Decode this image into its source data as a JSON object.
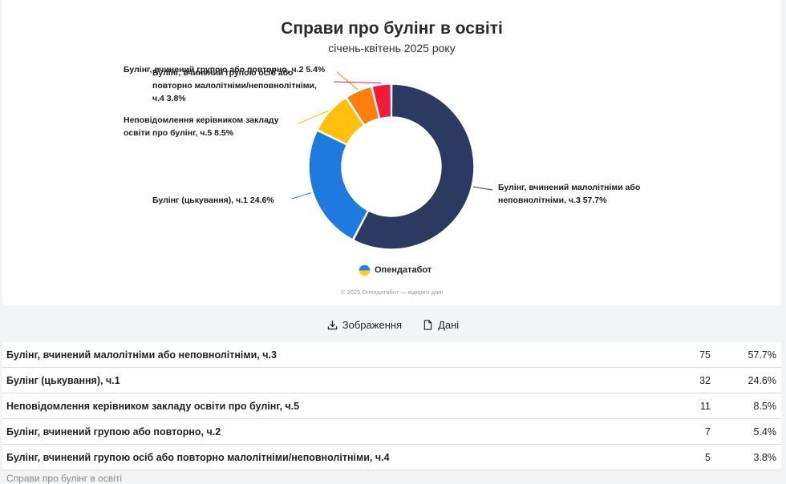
{
  "chart_data": {
    "type": "pie",
    "donut": true,
    "title": "Справи про булінг в освіті",
    "subtitle": "січень-квітень 2025 року",
    "slices": [
      {
        "label": "Булінг, вчинений малолітніми або неповнолітніми, ч.3",
        "label_lines": [
          "Булінг, вчинений малолітніми або",
          "неповнолітніми, ч.3 57.7%"
        ],
        "value": 75,
        "percent": 57.7,
        "color": "#2c3a62"
      },
      {
        "label": "Булінг (цькування), ч.1",
        "label_lines": [
          "Булінг (цькування), ч.1 24.6%"
        ],
        "value": 32,
        "percent": 24.6,
        "color": "#1f7ae0"
      },
      {
        "label": "Неповідомлення керівником закладу освіти про булінг, ч.5",
        "label_lines": [
          "Неповідомлення керівником закладу",
          "освіти про булінг, ч.5 8.5%"
        ],
        "value": 11,
        "percent": 8.5,
        "color": "#ffc10e"
      },
      {
        "label": "Булінг, вчинений групою або повторно, ч.2",
        "label_lines": [
          "Булінг, вчинений групою або повторно, ч.2 5.4%"
        ],
        "value": 7,
        "percent": 5.4,
        "color": "#ff7f0e"
      },
      {
        "label": "Булінг, вчинений групою осіб або повторно малолітніми/неповнолітніми, ч.4",
        "label_lines": [
          "Булінг, вчинений групою осіб або",
          "повторно малолітніми/неповнолітніми,",
          "ч.4 3.8%"
        ],
        "value": 5,
        "percent": 3.8,
        "color": "#f41a3a"
      }
    ]
  },
  "brand": {
    "name": "Опендатабот"
  },
  "copyright": "© 2025 Опендатабот — відкриті дані",
  "toolbar": {
    "image_label": "Зображення",
    "data_label": "Дані"
  },
  "table": {
    "rows": [
      {
        "name": "Булінг, вчинений малолітніми або неповнолітніми, ч.3",
        "count": "75",
        "percent": "57.7%"
      },
      {
        "name": "Булінг (цькування), ч.1",
        "count": "32",
        "percent": "24.6%"
      },
      {
        "name": "Неповідомлення керівником закладу освіти про булінг, ч.5",
        "count": "11",
        "percent": "8.5%"
      },
      {
        "name": "Булінг, вчинений групою або повторно, ч.2",
        "count": "7",
        "percent": "5.4%"
      },
      {
        "name": "Булінг, вчинений групою осіб або повторно малолітніми/неповнолітніми, ч.4",
        "count": "5",
        "percent": "3.8%"
      }
    ]
  },
  "footer_caption": "Справи про булінг в освіті"
}
